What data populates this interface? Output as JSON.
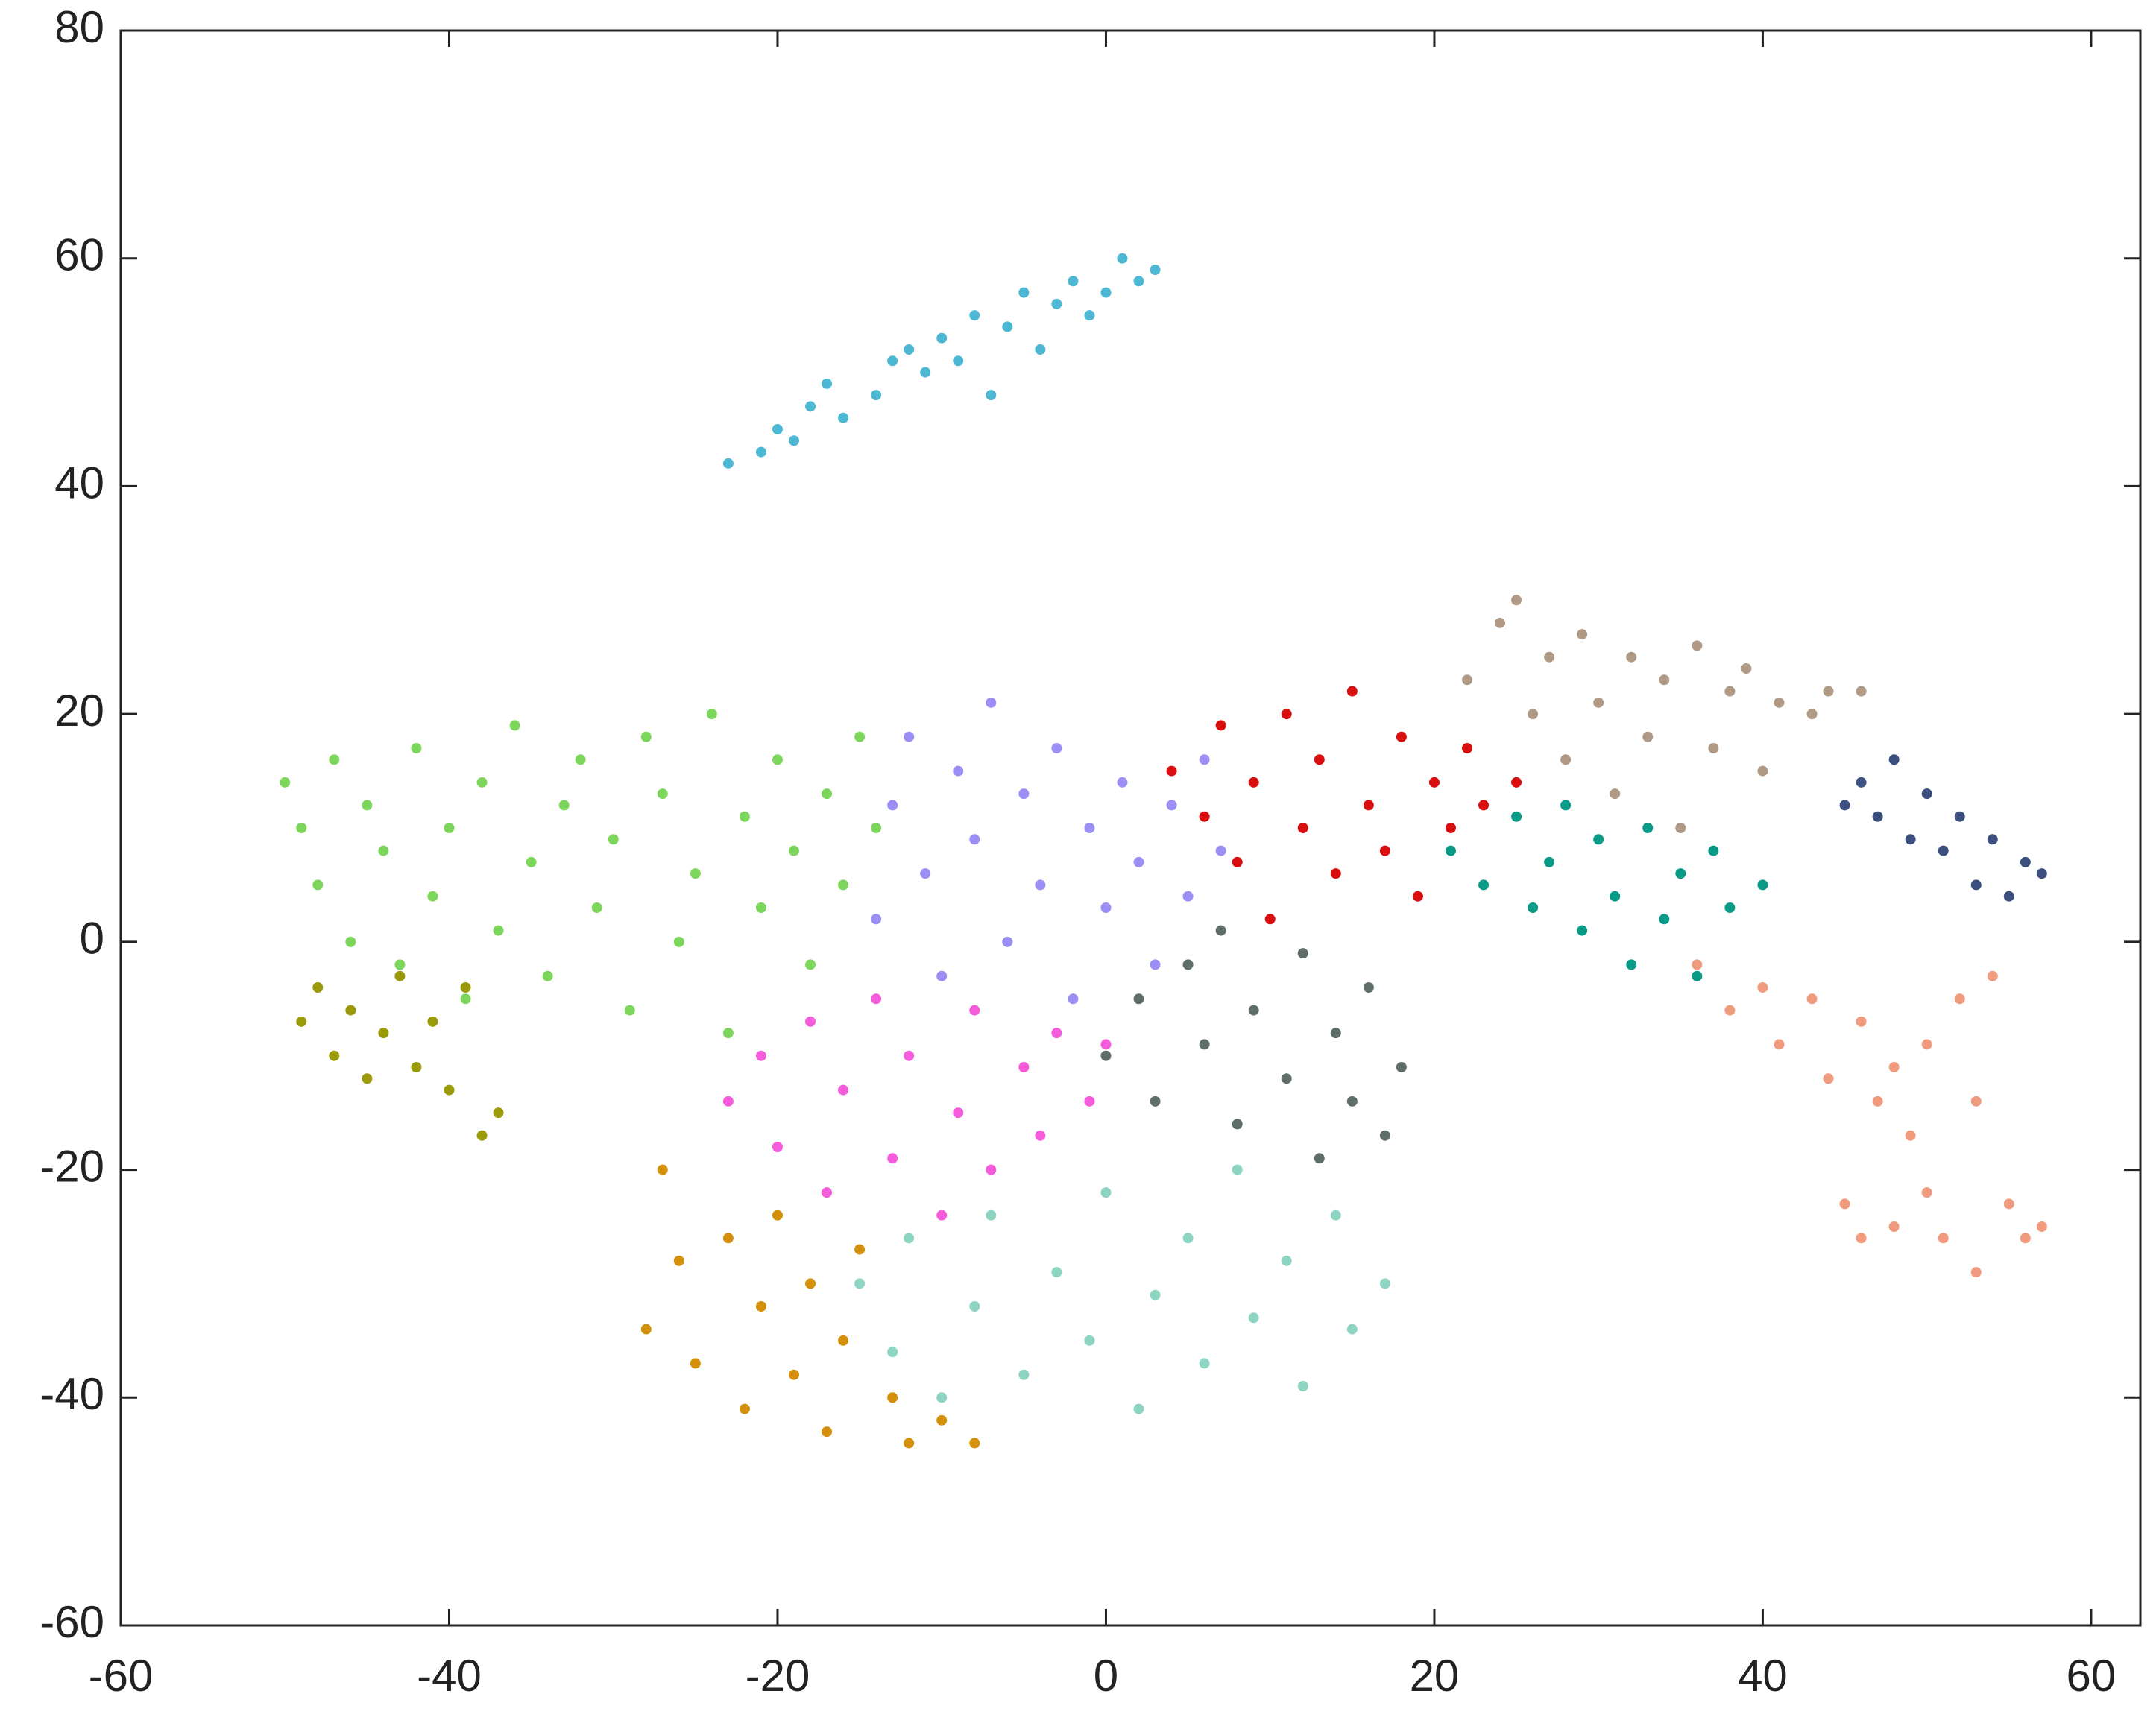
{
  "chart_data": {
    "type": "scatter",
    "xlim": [
      -60,
      63
    ],
    "ylim": [
      -60,
      80
    ],
    "xticks": [
      -60,
      -40,
      -20,
      0,
      20,
      40,
      60
    ],
    "yticks": [
      -60,
      -40,
      -20,
      0,
      20,
      40,
      60,
      80
    ],
    "grid": false,
    "series": [
      {
        "color": "#4cb8d4",
        "x": [
          -23,
          -21,
          -20,
          -19,
          -18,
          -17,
          -16,
          -14,
          -13,
          -12,
          -11,
          -10,
          -9,
          -8,
          -7,
          -6,
          -5,
          -4,
          -3,
          -2,
          -1,
          0,
          1,
          2,
          3
        ],
        "values": [
          42,
          43,
          45,
          44,
          47,
          49,
          46,
          48,
          51,
          52,
          50,
          53,
          51,
          55,
          48,
          54,
          57,
          52,
          56,
          58,
          55,
          57,
          60,
          58,
          59
        ]
      },
      {
        "color": "#7dd65c",
        "x": [
          -50,
          -49,
          -48,
          -47,
          -46,
          -45,
          -44,
          -43,
          -42,
          -41,
          -40,
          -39,
          -38,
          -37,
          -36,
          -35,
          -34,
          -33,
          -32,
          -31,
          -30,
          -29,
          -28,
          -27,
          -26,
          -25,
          -24,
          -23,
          -22,
          -21,
          -20,
          -19,
          -18,
          -17,
          -16,
          -15,
          -14
        ],
        "values": [
          14,
          10,
          5,
          16,
          0,
          12,
          8,
          -2,
          17,
          4,
          10,
          -5,
          14,
          1,
          19,
          7,
          -3,
          12,
          16,
          3,
          9,
          -6,
          18,
          13,
          0,
          6,
          20,
          -8,
          11,
          3,
          16,
          8,
          -2,
          13,
          5,
          18,
          10
        ]
      },
      {
        "color": "#9b8ff5",
        "x": [
          -14,
          -13,
          -12,
          -11,
          -10,
          -9,
          -8,
          -7,
          -6,
          -5,
          -4,
          -3,
          -2,
          -1,
          0,
          1,
          2,
          3,
          4,
          5,
          6,
          7
        ],
        "values": [
          2,
          12,
          18,
          6,
          -3,
          15,
          9,
          21,
          0,
          13,
          5,
          17,
          -5,
          10,
          3,
          14,
          7,
          -2,
          12,
          4,
          16,
          8
        ]
      },
      {
        "color": "#f55cdc",
        "x": [
          -23,
          -21,
          -20,
          -18,
          -17,
          -16,
          -14,
          -13,
          -12,
          -10,
          -9,
          -8,
          -7,
          -5,
          -4,
          -3,
          -1,
          0
        ],
        "values": [
          -14,
          -10,
          -18,
          -7,
          -22,
          -13,
          -5,
          -19,
          -10,
          -24,
          -15,
          -6,
          -20,
          -11,
          -17,
          -8,
          -14,
          -9
        ]
      },
      {
        "color": "#8ed4c2",
        "x": [
          -15,
          -13,
          -12,
          -10,
          -8,
          -7,
          -5,
          -3,
          -1,
          0,
          2,
          3,
          5,
          6,
          8,
          9,
          11,
          12,
          14,
          15,
          17
        ],
        "values": [
          -30,
          -36,
          -26,
          -40,
          -32,
          -24,
          -38,
          -29,
          -35,
          -22,
          -41,
          -31,
          -26,
          -37,
          -20,
          -33,
          -28,
          -39,
          -24,
          -34,
          -30
        ]
      },
      {
        "color": "#d4900a",
        "x": [
          -28,
          -27,
          -26,
          -25,
          -23,
          -22,
          -21,
          -20,
          -19,
          -18,
          -17,
          -16,
          -15,
          -13,
          -12,
          -10,
          -8
        ],
        "values": [
          -34,
          -20,
          -28,
          -37,
          -26,
          -41,
          -32,
          -24,
          -38,
          -30,
          -43,
          -35,
          -27,
          -40,
          -44,
          -42,
          -44
        ]
      },
      {
        "color": "#9a9a0a",
        "x": [
          -49,
          -48,
          -47,
          -46,
          -45,
          -44,
          -43,
          -42,
          -41,
          -40,
          -39,
          -38,
          -37
        ],
        "values": [
          -7,
          -4,
          -10,
          -6,
          -12,
          -8,
          -3,
          -11,
          -7,
          -13,
          -4,
          -17,
          -15
        ]
      },
      {
        "color": "#5f6e6a",
        "x": [
          0,
          2,
          3,
          5,
          6,
          7,
          8,
          9,
          11,
          12,
          13,
          14,
          15,
          16,
          17,
          18
        ],
        "values": [
          -10,
          -5,
          -14,
          -2,
          -9,
          1,
          -16,
          -6,
          -12,
          -1,
          -19,
          -8,
          -14,
          -4,
          -17,
          -11
        ]
      },
      {
        "color": "#d90f0f",
        "x": [
          4,
          6,
          7,
          8,
          9,
          10,
          11,
          12,
          13,
          14,
          15,
          16,
          17,
          18,
          19,
          20,
          21,
          22,
          23,
          25
        ],
        "values": [
          15,
          11,
          19,
          7,
          14,
          2,
          20,
          10,
          16,
          6,
          22,
          12,
          8,
          18,
          4,
          14,
          10,
          17,
          12,
          14
        ]
      },
      {
        "color": "#b09a86",
        "x": [
          22,
          24,
          25,
          26,
          27,
          28,
          29,
          30,
          31,
          32,
          33,
          34,
          35,
          36,
          37,
          38,
          39,
          40,
          41,
          43,
          44,
          46
        ],
        "values": [
          23,
          28,
          30,
          20,
          25,
          16,
          27,
          21,
          13,
          25,
          18,
          23,
          10,
          26,
          17,
          22,
          24,
          15,
          21,
          20,
          22,
          22
        ]
      },
      {
        "color": "#0a9a88",
        "x": [
          21,
          23,
          25,
          26,
          27,
          28,
          29,
          30,
          31,
          32,
          33,
          34,
          35,
          36,
          37,
          38,
          40
        ],
        "values": [
          8,
          5,
          11,
          3,
          7,
          12,
          1,
          9,
          4,
          -2,
          10,
          2,
          6,
          -3,
          8,
          3,
          5
        ]
      },
      {
        "color": "#3c5080",
        "x": [
          45,
          46,
          47,
          48,
          49,
          50,
          51,
          52,
          53,
          54,
          55,
          56,
          57
        ],
        "values": [
          12,
          14,
          11,
          16,
          9,
          13,
          8,
          11,
          5,
          9,
          4,
          7,
          6
        ]
      },
      {
        "color": "#f09a7e",
        "x": [
          36,
          38,
          40,
          41,
          43,
          44,
          46,
          47,
          48,
          49,
          50,
          50,
          51,
          52,
          53,
          53,
          54,
          55,
          56,
          57,
          48,
          46,
          45
        ],
        "values": [
          -2,
          -6,
          -4,
          -9,
          -5,
          -12,
          -7,
          -14,
          -11,
          -17,
          -22,
          -9,
          -26,
          -5,
          -14,
          -29,
          -3,
          -23,
          -26,
          -25,
          -25,
          -26,
          -23
        ]
      }
    ]
  }
}
